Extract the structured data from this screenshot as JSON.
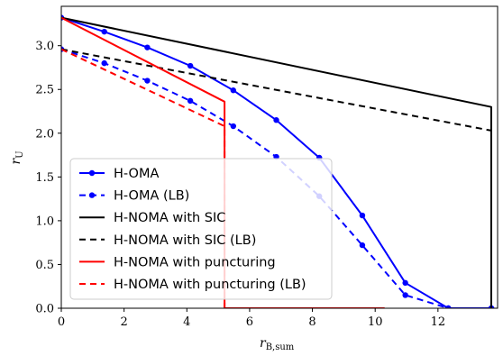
{
  "chart_data": {
    "type": "line",
    "xlabel": {
      "main": "r",
      "sub": "B,sum"
    },
    "ylabel": {
      "main": "r",
      "sub": "U"
    },
    "xlim": [
      0,
      13.9
    ],
    "ylim": [
      0,
      3.45
    ],
    "xticks": [
      0,
      2,
      4,
      6,
      8,
      10,
      12
    ],
    "yticks": [
      0.0,
      0.5,
      1.0,
      1.5,
      2.0,
      2.5,
      3.0
    ],
    "ytick_labels": [
      "0.0",
      "0.5",
      "1.0",
      "1.5",
      "2.0",
      "2.5",
      "3.0"
    ],
    "grid": false,
    "legend_position": "lower-left",
    "series": [
      {
        "name": "H-OMA",
        "color": "#0000ff",
        "dash": "solid",
        "markers": true,
        "x": [
          0,
          1.37,
          2.74,
          4.11,
          5.48,
          6.85,
          8.22,
          9.59,
          10.96,
          12.33,
          13.7
        ],
        "y": [
          3.32,
          3.16,
          2.98,
          2.77,
          2.49,
          2.15,
          1.72,
          1.06,
          0.29,
          0.0,
          0.0
        ]
      },
      {
        "name": "H-OMA (LB)",
        "color": "#0000ff",
        "dash": "dashed",
        "markers": true,
        "x": [
          0,
          1.37,
          2.74,
          4.11,
          5.48,
          6.85,
          8.22,
          9.59,
          10.96,
          12.33,
          13.7
        ],
        "y": [
          2.96,
          2.8,
          2.6,
          2.37,
          2.08,
          1.73,
          1.28,
          0.72,
          0.15,
          0.0,
          0.0
        ]
      },
      {
        "name": "H-NOMA with SIC",
        "color": "#000000",
        "dash": "solid",
        "markers": false,
        "x": [
          0,
          13.7,
          13.7
        ],
        "y": [
          3.32,
          2.3,
          0.0
        ]
      },
      {
        "name": "H-NOMA with SIC (LB)",
        "color": "#000000",
        "dash": "dashed",
        "markers": false,
        "x": [
          0,
          13.7,
          13.7
        ],
        "y": [
          2.96,
          2.03,
          0.0
        ]
      },
      {
        "name": "H-NOMA with puncturing",
        "color": "#ff0000",
        "dash": "solid",
        "markers": false,
        "x": [
          0,
          5.2,
          5.2,
          10.3
        ],
        "y": [
          3.32,
          2.36,
          0.0,
          0.0
        ]
      },
      {
        "name": "H-NOMA with puncturing (LB)",
        "color": "#ff0000",
        "dash": "dashed",
        "markers": false,
        "x": [
          0,
          5.2,
          5.2,
          10.3
        ],
        "y": [
          2.96,
          2.08,
          0.0,
          0.0
        ]
      }
    ]
  }
}
